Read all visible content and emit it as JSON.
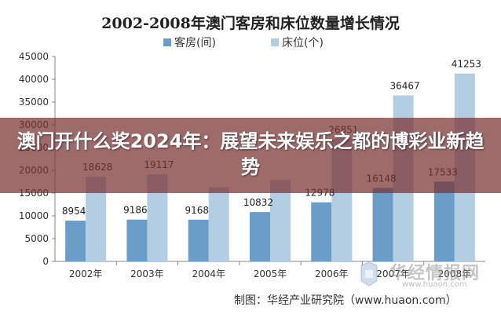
{
  "chart_data": {
    "type": "bar",
    "title": "2002-2008年澳门客房和床位数量增长情况",
    "categories": [
      "2002年",
      "2003年",
      "2004年",
      "2005年",
      "2006年",
      "2007年",
      "2008年"
    ],
    "series": [
      {
        "name": "客房(间)",
        "color": "#6a9ec8",
        "values": [
          8954,
          9186,
          9168,
          10832,
          12978,
          16148,
          17533
        ]
      },
      {
        "name": "床位(个)",
        "color": "#b3cde3",
        "values": [
          18628,
          19117,
          16300,
          17900,
          26851,
          36467,
          41253
        ]
      }
    ],
    "data_labels": [
      [
        "8954",
        "9186",
        "9168",
        "10832",
        "12978",
        "16148",
        "17533"
      ],
      [
        "18628",
        "19117",
        "",
        "",
        "26851",
        "36467",
        "41253"
      ]
    ],
    "yticks": [
      "0",
      "5000",
      "10000",
      "15000",
      "20000",
      "25000",
      "30000",
      "35000",
      "40000",
      "45000"
    ],
    "ylim": [
      0,
      45000
    ],
    "grid": false,
    "legend_position": "top-center"
  },
  "overlay": {
    "headline": "澳门开什么奖2024年：展望未来娱乐之都的博彩业新趋势"
  },
  "watermark": {
    "brand": "华经情报网",
    "url": "www.huaon.com"
  },
  "source_note": "制图：华经产业研究院（www.huaon.com）"
}
